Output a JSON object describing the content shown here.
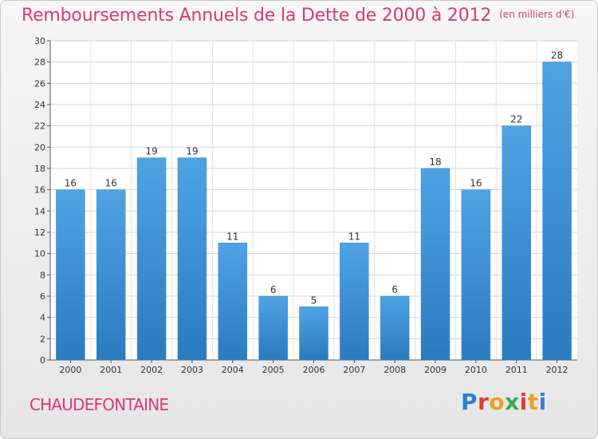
{
  "header": {
    "title": "Remboursements Annuels de la Dette de 2000 à 2012",
    "subtitle": "(en milliers d'€)"
  },
  "footer": {
    "commune": "CHAUDEFONTAINE",
    "logo_text": "Proxiti",
    "logo_colors": [
      "#2e7fd0",
      "#e03a2f",
      "#f0a020",
      "#3aa84a",
      "#e03a2f",
      "#f0a020",
      "#3a7fd0"
    ]
  },
  "colors": {
    "bar_fill": "#4fa3e3",
    "bar_fill_dark": "#2b7bbf",
    "title": "#d83a7a",
    "axis": "#555555"
  },
  "chart_data": {
    "type": "bar",
    "title": "Remboursements Annuels de la Dette de 2000 à 2012",
    "subtitle": "(en milliers d'€)",
    "categories": [
      "2000",
      "2001",
      "2002",
      "2003",
      "2004",
      "2005",
      "2006",
      "2007",
      "2008",
      "2009",
      "2010",
      "2011",
      "2012"
    ],
    "values": [
      16,
      16,
      19,
      19,
      11,
      6,
      5,
      11,
      6,
      18,
      16,
      22,
      28
    ],
    "ylim": [
      0,
      30
    ],
    "yticks": [
      0,
      2,
      4,
      6,
      8,
      10,
      12,
      14,
      16,
      18,
      20,
      22,
      24,
      26,
      28,
      30
    ],
    "grid": true,
    "data_labels": true
  }
}
